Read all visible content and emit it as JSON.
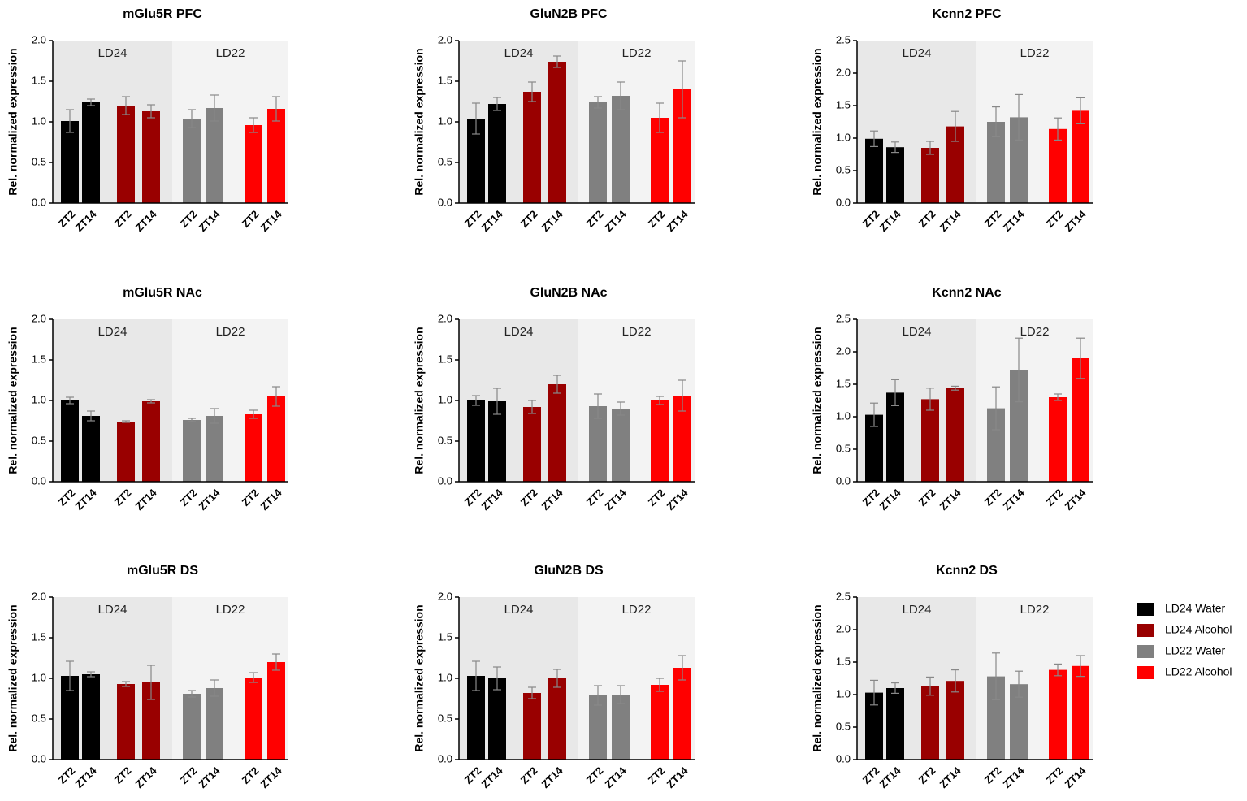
{
  "legend": [
    {
      "name": "LD24 Water",
      "color": "#000000"
    },
    {
      "name": "LD24 Alcohol",
      "color": "#990000"
    },
    {
      "name": "LD22 Water",
      "color": "#808080"
    },
    {
      "name": "LD22 Alcohol",
      "color": "#ff0000"
    }
  ],
  "chart_data": [
    {
      "type": "bar",
      "title": "mGlu5R PFC",
      "ylabel": "Rel. normalized expression",
      "categories": [
        "ZT2",
        "ZT14"
      ],
      "regions": [
        "LD24",
        "LD22"
      ],
      "ylim": [
        0,
        2
      ],
      "yticks": [
        {
          "value": 0,
          "label": "0.0"
        },
        {
          "value": 0.5,
          "label": "0.5"
        },
        {
          "value": 1,
          "label": "1.0"
        },
        {
          "value": 1.5,
          "label": "1.5"
        },
        {
          "value": 2,
          "label": "2.0"
        }
      ],
      "series": [
        {
          "values": [
            1.01,
            1.24
          ],
          "errors": [
            0.14,
            0.04
          ]
        },
        {
          "values": [
            1.2,
            1.13
          ],
          "errors": [
            0.11,
            0.08
          ]
        },
        {
          "values": [
            1.04,
            1.17
          ],
          "errors": [
            0.11,
            0.16
          ]
        },
        {
          "values": [
            0.96,
            1.16
          ],
          "errors": [
            0.09,
            0.15
          ]
        }
      ]
    },
    {
      "type": "bar",
      "title": "GluN2B PFC",
      "ylabel": "Rel. normalized expression",
      "categories": [
        "ZT2",
        "ZT14"
      ],
      "regions": [
        "LD24",
        "LD22"
      ],
      "ylim": [
        0,
        2
      ],
      "yticks": [
        {
          "value": 0,
          "label": "0.0"
        },
        {
          "value": 0.5,
          "label": "0.5"
        },
        {
          "value": 1,
          "label": "1.0"
        },
        {
          "value": 1.5,
          "label": "1.5"
        },
        {
          "value": 2,
          "label": "2.0"
        }
      ],
      "series": [
        {
          "values": [
            1.04,
            1.22
          ],
          "errors": [
            0.19,
            0.08
          ]
        },
        {
          "values": [
            1.37,
            1.74
          ],
          "errors": [
            0.12,
            0.07
          ]
        },
        {
          "values": [
            1.24,
            1.32
          ],
          "errors": [
            0.07,
            0.17
          ]
        },
        {
          "values": [
            1.05,
            1.4
          ],
          "errors": [
            0.18,
            0.35
          ]
        }
      ]
    },
    {
      "type": "bar",
      "title": "Kcnn2 PFC",
      "ylabel": "Rel. normalized expression",
      "categories": [
        "ZT2",
        "ZT14"
      ],
      "regions": [
        "LD24",
        "LD22"
      ],
      "ylim": [
        0,
        2.5
      ],
      "yticks": [
        {
          "value": 0,
          "label": "0.0"
        },
        {
          "value": 0.5,
          "label": "0.5"
        },
        {
          "value": 1,
          "label": "1.0"
        },
        {
          "value": 1.5,
          "label": "1.5"
        },
        {
          "value": 2,
          "label": "2.0"
        },
        {
          "value": 2.5,
          "label": "2.5"
        }
      ],
      "series": [
        {
          "values": [
            0.99,
            0.86
          ],
          "errors": [
            0.12,
            0.08
          ]
        },
        {
          "values": [
            0.85,
            1.18
          ],
          "errors": [
            0.1,
            0.23
          ]
        },
        {
          "values": [
            1.25,
            1.32
          ],
          "errors": [
            0.23,
            0.35
          ]
        },
        {
          "values": [
            1.14,
            1.42
          ],
          "errors": [
            0.17,
            0.2
          ]
        }
      ]
    },
    {
      "type": "bar",
      "title": "mGlu5R NAc",
      "ylabel": "Rel. normalized expression",
      "categories": [
        "ZT2",
        "ZT14"
      ],
      "regions": [
        "LD24",
        "LD22"
      ],
      "ylim": [
        0,
        2
      ],
      "yticks": [
        {
          "value": 0,
          "label": "0.0"
        },
        {
          "value": 0.5,
          "label": "0.5"
        },
        {
          "value": 1,
          "label": "1.0"
        },
        {
          "value": 1.5,
          "label": "1.5"
        },
        {
          "value": 2,
          "label": "2.0"
        }
      ],
      "series": [
        {
          "values": [
            1.0,
            0.81
          ],
          "errors": [
            0.04,
            0.06
          ]
        },
        {
          "values": [
            0.74,
            0.99
          ],
          "errors": [
            0.01,
            0.02
          ]
        },
        {
          "values": [
            0.76,
            0.81
          ],
          "errors": [
            0.02,
            0.09
          ]
        },
        {
          "values": [
            0.83,
            1.05
          ],
          "errors": [
            0.05,
            0.12
          ]
        }
      ]
    },
    {
      "type": "bar",
      "title": "GluN2B NAc",
      "ylabel": "Rel. normalized expression",
      "categories": [
        "ZT2",
        "ZT14"
      ],
      "regions": [
        "LD24",
        "LD22"
      ],
      "ylim": [
        0,
        2
      ],
      "yticks": [
        {
          "value": 0,
          "label": "0.0"
        },
        {
          "value": 0.5,
          "label": "0.5"
        },
        {
          "value": 1,
          "label": "1.0"
        },
        {
          "value": 1.5,
          "label": "1.5"
        },
        {
          "value": 2,
          "label": "2.0"
        }
      ],
      "series": [
        {
          "values": [
            1.0,
            0.99
          ],
          "errors": [
            0.06,
            0.16
          ]
        },
        {
          "values": [
            0.92,
            1.2
          ],
          "errors": [
            0.08,
            0.11
          ]
        },
        {
          "values": [
            0.93,
            0.9
          ],
          "errors": [
            0.15,
            0.08
          ]
        },
        {
          "values": [
            1.0,
            1.06
          ],
          "errors": [
            0.05,
            0.19
          ]
        }
      ]
    },
    {
      "type": "bar",
      "title": "Kcnn2 NAc",
      "ylabel": "Rel. normalized expression",
      "categories": [
        "ZT2",
        "ZT14"
      ],
      "regions": [
        "LD24",
        "LD22"
      ],
      "ylim": [
        0,
        2.5
      ],
      "yticks": [
        {
          "value": 0,
          "label": "0.0"
        },
        {
          "value": 0.5,
          "label": "0.5"
        },
        {
          "value": 1,
          "label": "1.0"
        },
        {
          "value": 1.5,
          "label": "1.5"
        },
        {
          "value": 2,
          "label": "2.0"
        },
        {
          "value": 2.5,
          "label": "2.5"
        }
      ],
      "series": [
        {
          "values": [
            1.03,
            1.37
          ],
          "errors": [
            0.18,
            0.2
          ]
        },
        {
          "values": [
            1.27,
            1.44
          ],
          "errors": [
            0.17,
            0.03
          ]
        },
        {
          "values": [
            1.13,
            1.72
          ],
          "errors": [
            0.33,
            0.49
          ]
        },
        {
          "values": [
            1.3,
            1.9
          ],
          "errors": [
            0.05,
            0.31
          ]
        }
      ]
    },
    {
      "type": "bar",
      "title": "mGlu5R DS",
      "ylabel": "Rel. normalized expression",
      "categories": [
        "ZT2",
        "ZT14"
      ],
      "regions": [
        "LD24",
        "LD22"
      ],
      "ylim": [
        0,
        2
      ],
      "yticks": [
        {
          "value": 0,
          "label": "0.0"
        },
        {
          "value": 0.5,
          "label": "0.5"
        },
        {
          "value": 1,
          "label": "1.0"
        },
        {
          "value": 1.5,
          "label": "1.5"
        },
        {
          "value": 2,
          "label": "2.0"
        }
      ],
      "series": [
        {
          "values": [
            1.03,
            1.05
          ],
          "errors": [
            0.18,
            0.03
          ]
        },
        {
          "values": [
            0.93,
            0.95
          ],
          "errors": [
            0.03,
            0.21
          ]
        },
        {
          "values": [
            0.81,
            0.88
          ],
          "errors": [
            0.04,
            0.1
          ]
        },
        {
          "values": [
            1.01,
            1.2
          ],
          "errors": [
            0.06,
            0.1
          ]
        }
      ]
    },
    {
      "type": "bar",
      "title": "GluN2B DS",
      "ylabel": "Rel. normalized expression",
      "categories": [
        "ZT2",
        "ZT14"
      ],
      "regions": [
        "LD24",
        "LD22"
      ],
      "ylim": [
        0,
        2
      ],
      "yticks": [
        {
          "value": 0,
          "label": "0.0"
        },
        {
          "value": 0.5,
          "label": "0.5"
        },
        {
          "value": 1,
          "label": "1.0"
        },
        {
          "value": 1.5,
          "label": "1.5"
        },
        {
          "value": 2,
          "label": "2.0"
        }
      ],
      "series": [
        {
          "values": [
            1.03,
            1.0
          ],
          "errors": [
            0.18,
            0.14
          ]
        },
        {
          "values": [
            0.82,
            1.0
          ],
          "errors": [
            0.07,
            0.11
          ]
        },
        {
          "values": [
            0.79,
            0.8
          ],
          "errors": [
            0.12,
            0.11
          ]
        },
        {
          "values": [
            0.92,
            1.13
          ],
          "errors": [
            0.08,
            0.15
          ]
        }
      ]
    },
    {
      "type": "bar",
      "title": "Kcnn2 DS",
      "ylabel": "Rel. normalized expression",
      "categories": [
        "ZT2",
        "ZT14"
      ],
      "regions": [
        "LD24",
        "LD22"
      ],
      "ylim": [
        0,
        2.5
      ],
      "yticks": [
        {
          "value": 0,
          "label": "0.0"
        },
        {
          "value": 0.5,
          "label": "0.5"
        },
        {
          "value": 1,
          "label": "1.0"
        },
        {
          "value": 1.5,
          "label": "1.5"
        },
        {
          "value": 2,
          "label": "2.0"
        },
        {
          "value": 2.5,
          "label": "2.5"
        }
      ],
      "series": [
        {
          "values": [
            1.03,
            1.1
          ],
          "errors": [
            0.19,
            0.08
          ]
        },
        {
          "values": [
            1.13,
            1.21
          ],
          "errors": [
            0.14,
            0.17
          ]
        },
        {
          "values": [
            1.28,
            1.16
          ],
          "errors": [
            0.36,
            0.2
          ]
        },
        {
          "values": [
            1.38,
            1.44
          ],
          "errors": [
            0.09,
            0.16
          ]
        }
      ]
    }
  ]
}
